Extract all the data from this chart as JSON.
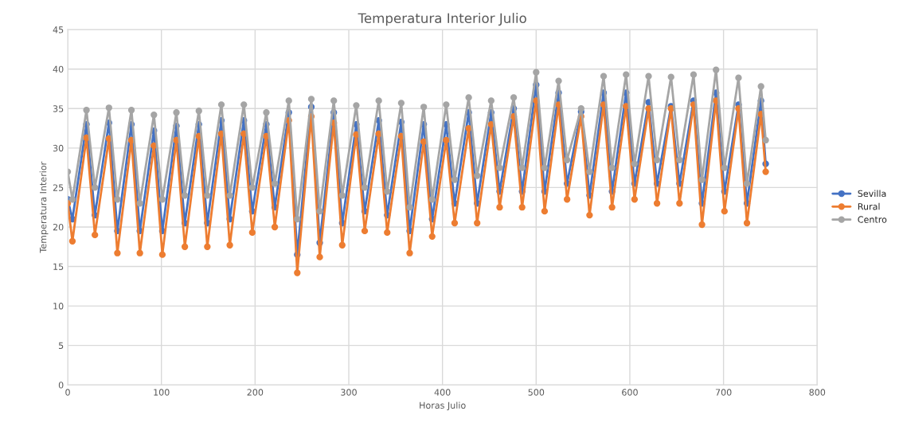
{
  "chart_data": {
    "type": "line",
    "title": "Temperatura Interior Julio",
    "xlabel": "Horas Julio",
    "ylabel": "Temperatura Interior",
    "x": [
      0,
      5,
      20,
      29,
      44,
      53,
      68,
      77,
      92,
      101,
      116,
      125,
      140,
      149,
      164,
      173,
      188,
      197,
      212,
      221,
      236,
      245,
      260,
      269,
      284,
      293,
      308,
      317,
      332,
      341,
      356,
      365,
      380,
      389,
      404,
      413,
      428,
      437,
      452,
      461,
      476,
      485,
      500,
      509,
      524,
      533,
      548,
      557,
      572,
      581,
      596,
      605,
      620,
      629,
      644,
      653,
      668,
      677,
      692,
      701,
      716,
      725,
      740,
      745
    ],
    "series": [
      {
        "name": "Sevilla",
        "color": "#4472c4",
        "values": [
          23.5,
          21.0,
          33.0,
          21.5,
          33.2,
          19.5,
          33.0,
          19.5,
          32.2,
          19.5,
          32.8,
          20.5,
          33.0,
          20.5,
          33.5,
          21.0,
          33.5,
          22.0,
          33.0,
          22.5,
          34.5,
          16.5,
          35.2,
          18.0,
          34.5,
          20.5,
          33.0,
          22.0,
          33.5,
          21.5,
          33.3,
          19.5,
          33.0,
          21.0,
          33.0,
          23.0,
          34.5,
          23.0,
          34.5,
          24.5,
          35.0,
          24.5,
          38.0,
          24.5,
          37.0,
          25.5,
          34.6,
          24.0,
          37.0,
          24.5,
          37.0,
          25.5,
          35.8,
          25.5,
          35.3,
          25.5,
          36.0,
          23.0,
          37.0,
          24.5,
          35.5,
          23.0,
          36.0,
          28.0
        ]
      },
      {
        "name": "Rural",
        "color": "#ed7d31",
        "values": [
          23.0,
          18.2,
          31.3,
          19.0,
          31.2,
          16.7,
          31.0,
          16.7,
          30.3,
          16.5,
          31.0,
          17.5,
          31.5,
          17.5,
          31.8,
          17.7,
          31.8,
          19.3,
          31.5,
          20.0,
          33.5,
          14.2,
          34.0,
          16.2,
          33.2,
          17.7,
          31.7,
          19.5,
          31.8,
          19.3,
          31.5,
          16.7,
          30.8,
          18.8,
          31.0,
          20.5,
          32.5,
          20.5,
          33.0,
          22.5,
          34.0,
          22.5,
          36.0,
          22.0,
          35.5,
          23.5,
          34.0,
          21.5,
          35.5,
          22.5,
          35.3,
          23.5,
          35.0,
          23.0,
          35.0,
          23.0,
          35.5,
          20.3,
          36.0,
          22.0,
          35.0,
          20.5,
          34.3,
          27.0
        ]
      },
      {
        "name": "Centro",
        "color": "#a5a5a5",
        "values": [
          27.0,
          23.5,
          34.8,
          25.0,
          35.1,
          23.5,
          34.8,
          23.0,
          34.2,
          23.5,
          34.5,
          24.0,
          34.7,
          24.0,
          35.5,
          24.0,
          35.5,
          25.0,
          34.5,
          25.5,
          36.0,
          21.0,
          36.2,
          22.0,
          36.0,
          24.0,
          35.4,
          25.0,
          36.0,
          24.5,
          35.7,
          22.5,
          35.2,
          23.5,
          35.5,
          26.0,
          36.4,
          26.5,
          36.0,
          27.5,
          36.4,
          27.5,
          39.6,
          27.5,
          38.5,
          28.5,
          35.0,
          27.0,
          39.1,
          27.5,
          39.3,
          28.0,
          39.1,
          28.5,
          39.0,
          28.5,
          39.3,
          26.0,
          39.9,
          27.5,
          38.9,
          25.5,
          37.8,
          31.0
        ]
      }
    ],
    "xlim": [
      0,
      800
    ],
    "xticks": [
      0,
      100,
      200,
      300,
      400,
      500,
      600,
      700,
      800
    ],
    "ylim": [
      0,
      45
    ],
    "yticks": [
      0,
      5,
      10,
      15,
      20,
      25,
      30,
      35,
      40,
      45
    ],
    "grid": true,
    "legend": "right",
    "marker": "circle",
    "line_style": "solid"
  }
}
